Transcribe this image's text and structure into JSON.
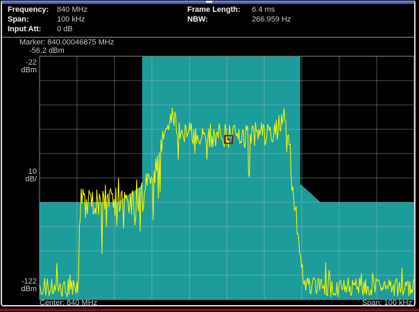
{
  "settings": {
    "left": [
      {
        "label": "Frequency:",
        "value": "840 MHz"
      },
      {
        "label": "Span:",
        "value": "100 kHz"
      },
      {
        "label": "Input Att:",
        "value": "0 dB"
      }
    ],
    "right": [
      {
        "label": "Frame Length:",
        "value": "6.4 ms"
      },
      {
        "label": "NBW:",
        "value": "266.959 Hz"
      }
    ]
  },
  "marker_readout": {
    "label": "Marker:",
    "frequency": "840.00046875 MHz",
    "amplitude": "-56.2 dBm"
  },
  "y_axis_labels": {
    "top_value": "-22",
    "top_unit": "dBm",
    "per_div_value": "10",
    "per_div_unit": "dB/",
    "bottom_value": "-122",
    "bottom_unit": "dBm"
  },
  "footer": {
    "center": "Center: 840 MHz",
    "span": "Span: 100 kHz"
  },
  "chart_data": {
    "type": "line",
    "title": "spectrum trace with spectrum emission mask",
    "x_axis": {
      "center": "840 MHz",
      "span": "100 kHz",
      "divisions": 10
    },
    "y_axis": {
      "ref_dbm": -22,
      "bottom_dbm": -122,
      "scale_db_per_div": 10,
      "divisions": 10
    },
    "marker": {
      "x_frac": 0.5047,
      "level_dbm": -56.2
    },
    "mask_upper_boundary": [
      [
        0.0,
        -82
      ],
      [
        0.209,
        -82
      ],
      [
        0.274,
        -75
      ],
      [
        0.274,
        -22
      ],
      [
        0.696,
        -22
      ],
      [
        0.696,
        -74.5
      ],
      [
        0.75,
        -82
      ],
      [
        1.0,
        -82
      ]
    ],
    "trace_envelope": [
      [
        0.0,
        -117,
        4
      ],
      [
        0.104,
        -117,
        4
      ],
      [
        0.108,
        -83,
        8
      ],
      [
        0.2,
        -80,
        8
      ],
      [
        0.272,
        -80,
        8
      ],
      [
        0.3,
        -73,
        6
      ],
      [
        0.33,
        -57,
        5
      ],
      [
        0.354,
        -47,
        4
      ],
      [
        0.378,
        -53,
        5
      ],
      [
        0.43,
        -55,
        5
      ],
      [
        0.48,
        -54,
        5
      ],
      [
        0.53,
        -55,
        5
      ],
      [
        0.58,
        -54,
        5
      ],
      [
        0.615,
        -55,
        5
      ],
      [
        0.638,
        -51,
        5
      ],
      [
        0.652,
        -45,
        4
      ],
      [
        0.662,
        -52,
        4
      ],
      [
        0.674,
        -70,
        5
      ],
      [
        0.688,
        -93,
        5
      ],
      [
        0.705,
        -112,
        4
      ],
      [
        0.716,
        -117,
        4
      ],
      [
        1.0,
        -117,
        4
      ]
    ],
    "colors": {
      "trace": "#f5f500",
      "mask": "#1d9c9c",
      "grid": "#bebebe",
      "marker_outline": "#6e2420",
      "background": "#000000"
    }
  }
}
